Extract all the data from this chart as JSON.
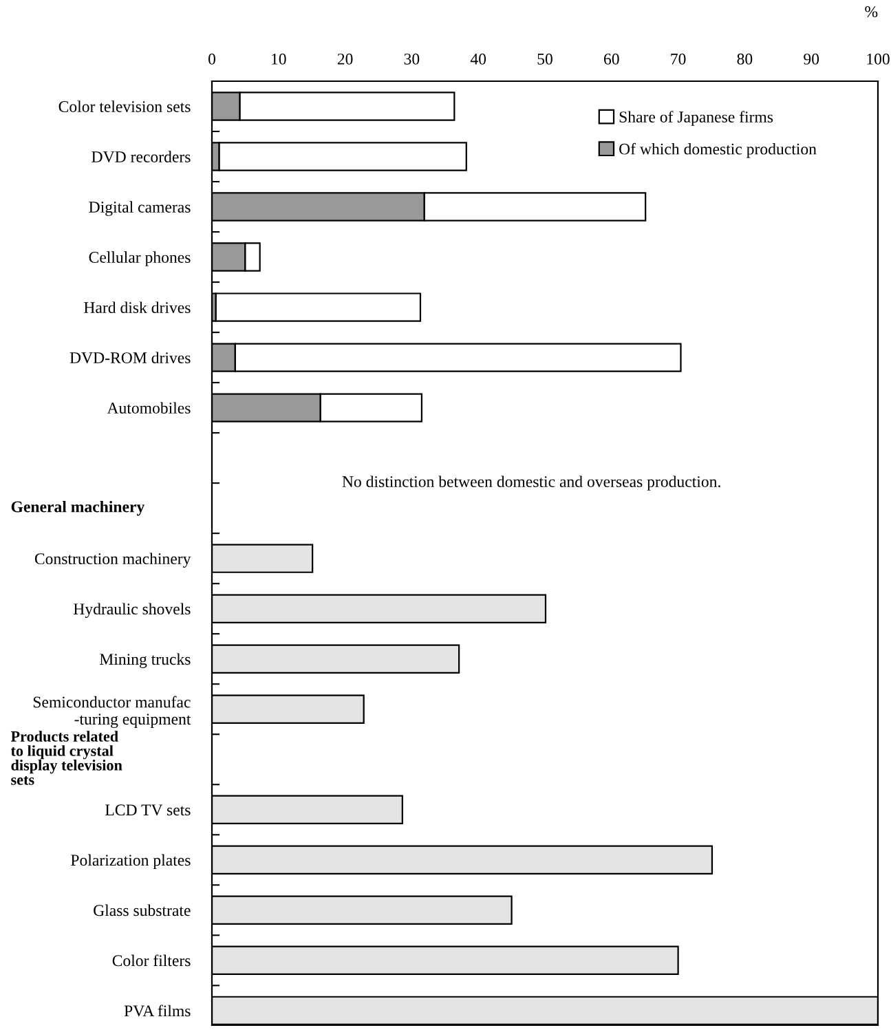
{
  "chart_data": {
    "type": "bar",
    "orientation": "horizontal",
    "stacked": true,
    "xlabel": "%",
    "categories": [
      "Color television sets",
      "DVD recorders",
      "Digital cameras",
      "Cellular phones",
      "Hard disk drives",
      "DVD-ROM drives",
      "Automobiles",
      null,
      null,
      "Construction machinery",
      "Hydraulic shovels",
      "Mining trucks",
      "Semiconductor manufac\n-turing equipment",
      null,
      "LCD TV sets",
      "Polarization plates",
      "Glass substrate",
      "Color filters",
      "PVA films"
    ],
    "series": [
      {
        "name": "Of which domestic production",
        "color": "#999999",
        "values": [
          4.2,
          1.1,
          31.9,
          5.0,
          0.6,
          3.5,
          16.3,
          null,
          null,
          null,
          null,
          null,
          null,
          null,
          null,
          null,
          null,
          null,
          null
        ]
      },
      {
        "name": "Share of Japanese firms",
        "color": "#ffffff",
        "values": [
          32.2,
          37.1,
          33.2,
          2.2,
          30.7,
          66.9,
          15.2,
          null,
          null,
          null,
          null,
          null,
          null,
          null,
          null,
          null,
          null,
          null,
          null
        ]
      },
      {
        "color": "#e4e4e4",
        "values": [
          null,
          null,
          null,
          null,
          null,
          null,
          null,
          null,
          null,
          15.1,
          50.1,
          37.1,
          22.8,
          null,
          28.6,
          75.1,
          45.0,
          70.0,
          100
        ]
      }
    ],
    "xlim": [
      0,
      100
    ],
    "xticks": [
      0,
      10,
      20,
      30,
      40,
      50,
      60,
      70,
      80,
      90,
      100
    ],
    "annotations": [
      "No distinction between domestic and overseas production.",
      "General machinery",
      "Products related\nto liquid crystal\ndisplay television\nsets"
    ],
    "legend": "top right",
    "grid": false
  }
}
